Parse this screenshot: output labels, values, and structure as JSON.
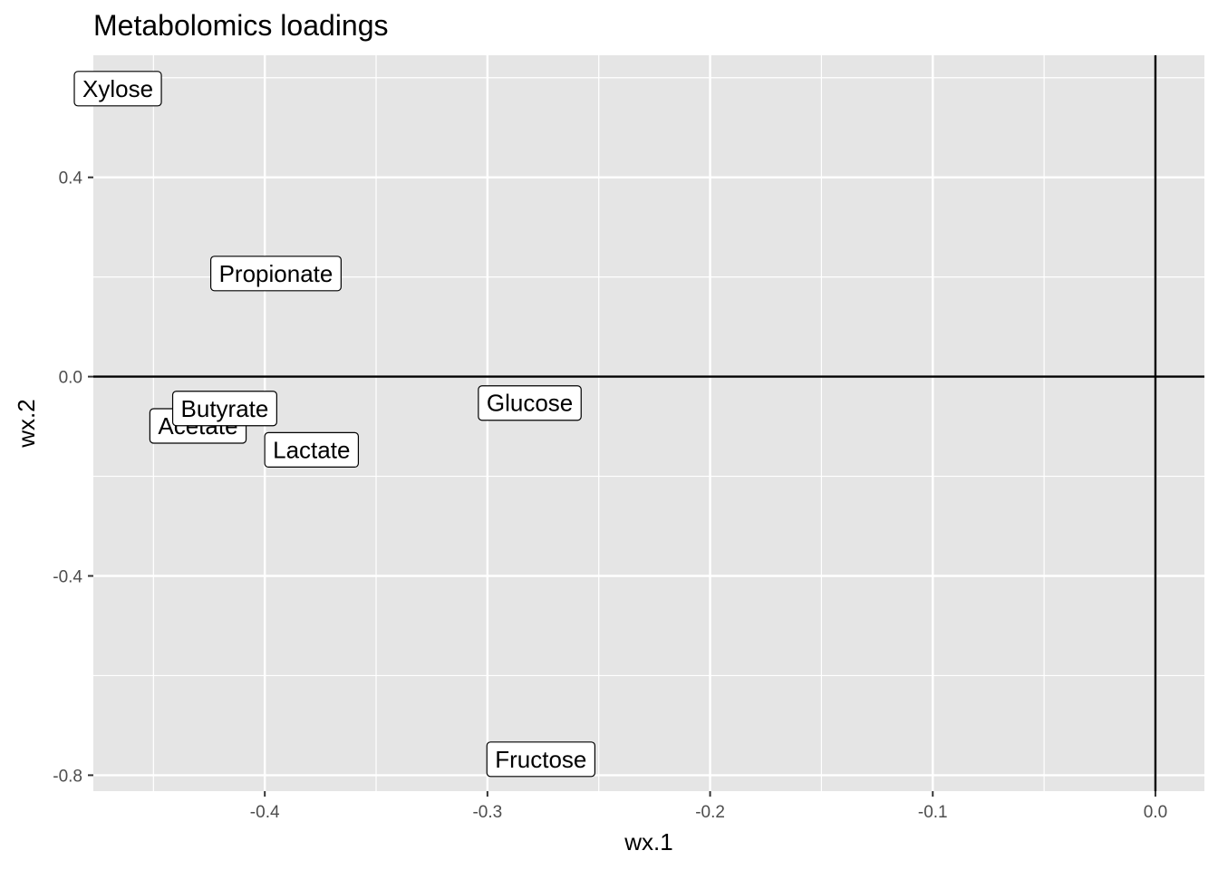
{
  "chart_data": {
    "type": "scatter",
    "title": "Metabolomics loadings",
    "xlabel": "wx.1",
    "ylabel": "wx.2",
    "xlim": [
      -0.477,
      0.022
    ],
    "ylim": [
      -0.832,
      0.645
    ],
    "x_ticks": [
      -0.4,
      -0.3,
      -0.2,
      -0.1,
      0.0
    ],
    "x_tick_labels": [
      "-0.4",
      "-0.3",
      "-0.2",
      "-0.1",
      "0.0"
    ],
    "y_ticks": [
      0.4,
      0.0,
      -0.4,
      -0.8
    ],
    "y_tick_labels": [
      "0.4",
      "0.0",
      "-0.4",
      "-0.8"
    ],
    "minor_x": [
      -0.45,
      -0.35,
      -0.25,
      -0.15,
      -0.05
    ],
    "minor_y": [
      0.6,
      0.2,
      -0.2,
      -0.6
    ],
    "reference_lines": {
      "x": 0,
      "y": 0
    },
    "grid": true,
    "points": [
      {
        "label": "Xylose",
        "x": -0.466,
        "y": 0.578
      },
      {
        "label": "Propionate",
        "x": -0.395,
        "y": 0.207
      },
      {
        "label": "Acetate",
        "x": -0.43,
        "y": -0.099
      },
      {
        "label": "Butyrate",
        "x": -0.418,
        "y": -0.064
      },
      {
        "label": "Lactate",
        "x": -0.379,
        "y": -0.147
      },
      {
        "label": "Glucose",
        "x": -0.281,
        "y": -0.053
      },
      {
        "label": "Fructose",
        "x": -0.276,
        "y": -0.768
      }
    ],
    "colors": {
      "panel_background": "#e5e5e5",
      "grid": "#ffffff",
      "reference_line": "#000000",
      "label_fill": "#ffffff",
      "label_border": "#000000"
    }
  }
}
